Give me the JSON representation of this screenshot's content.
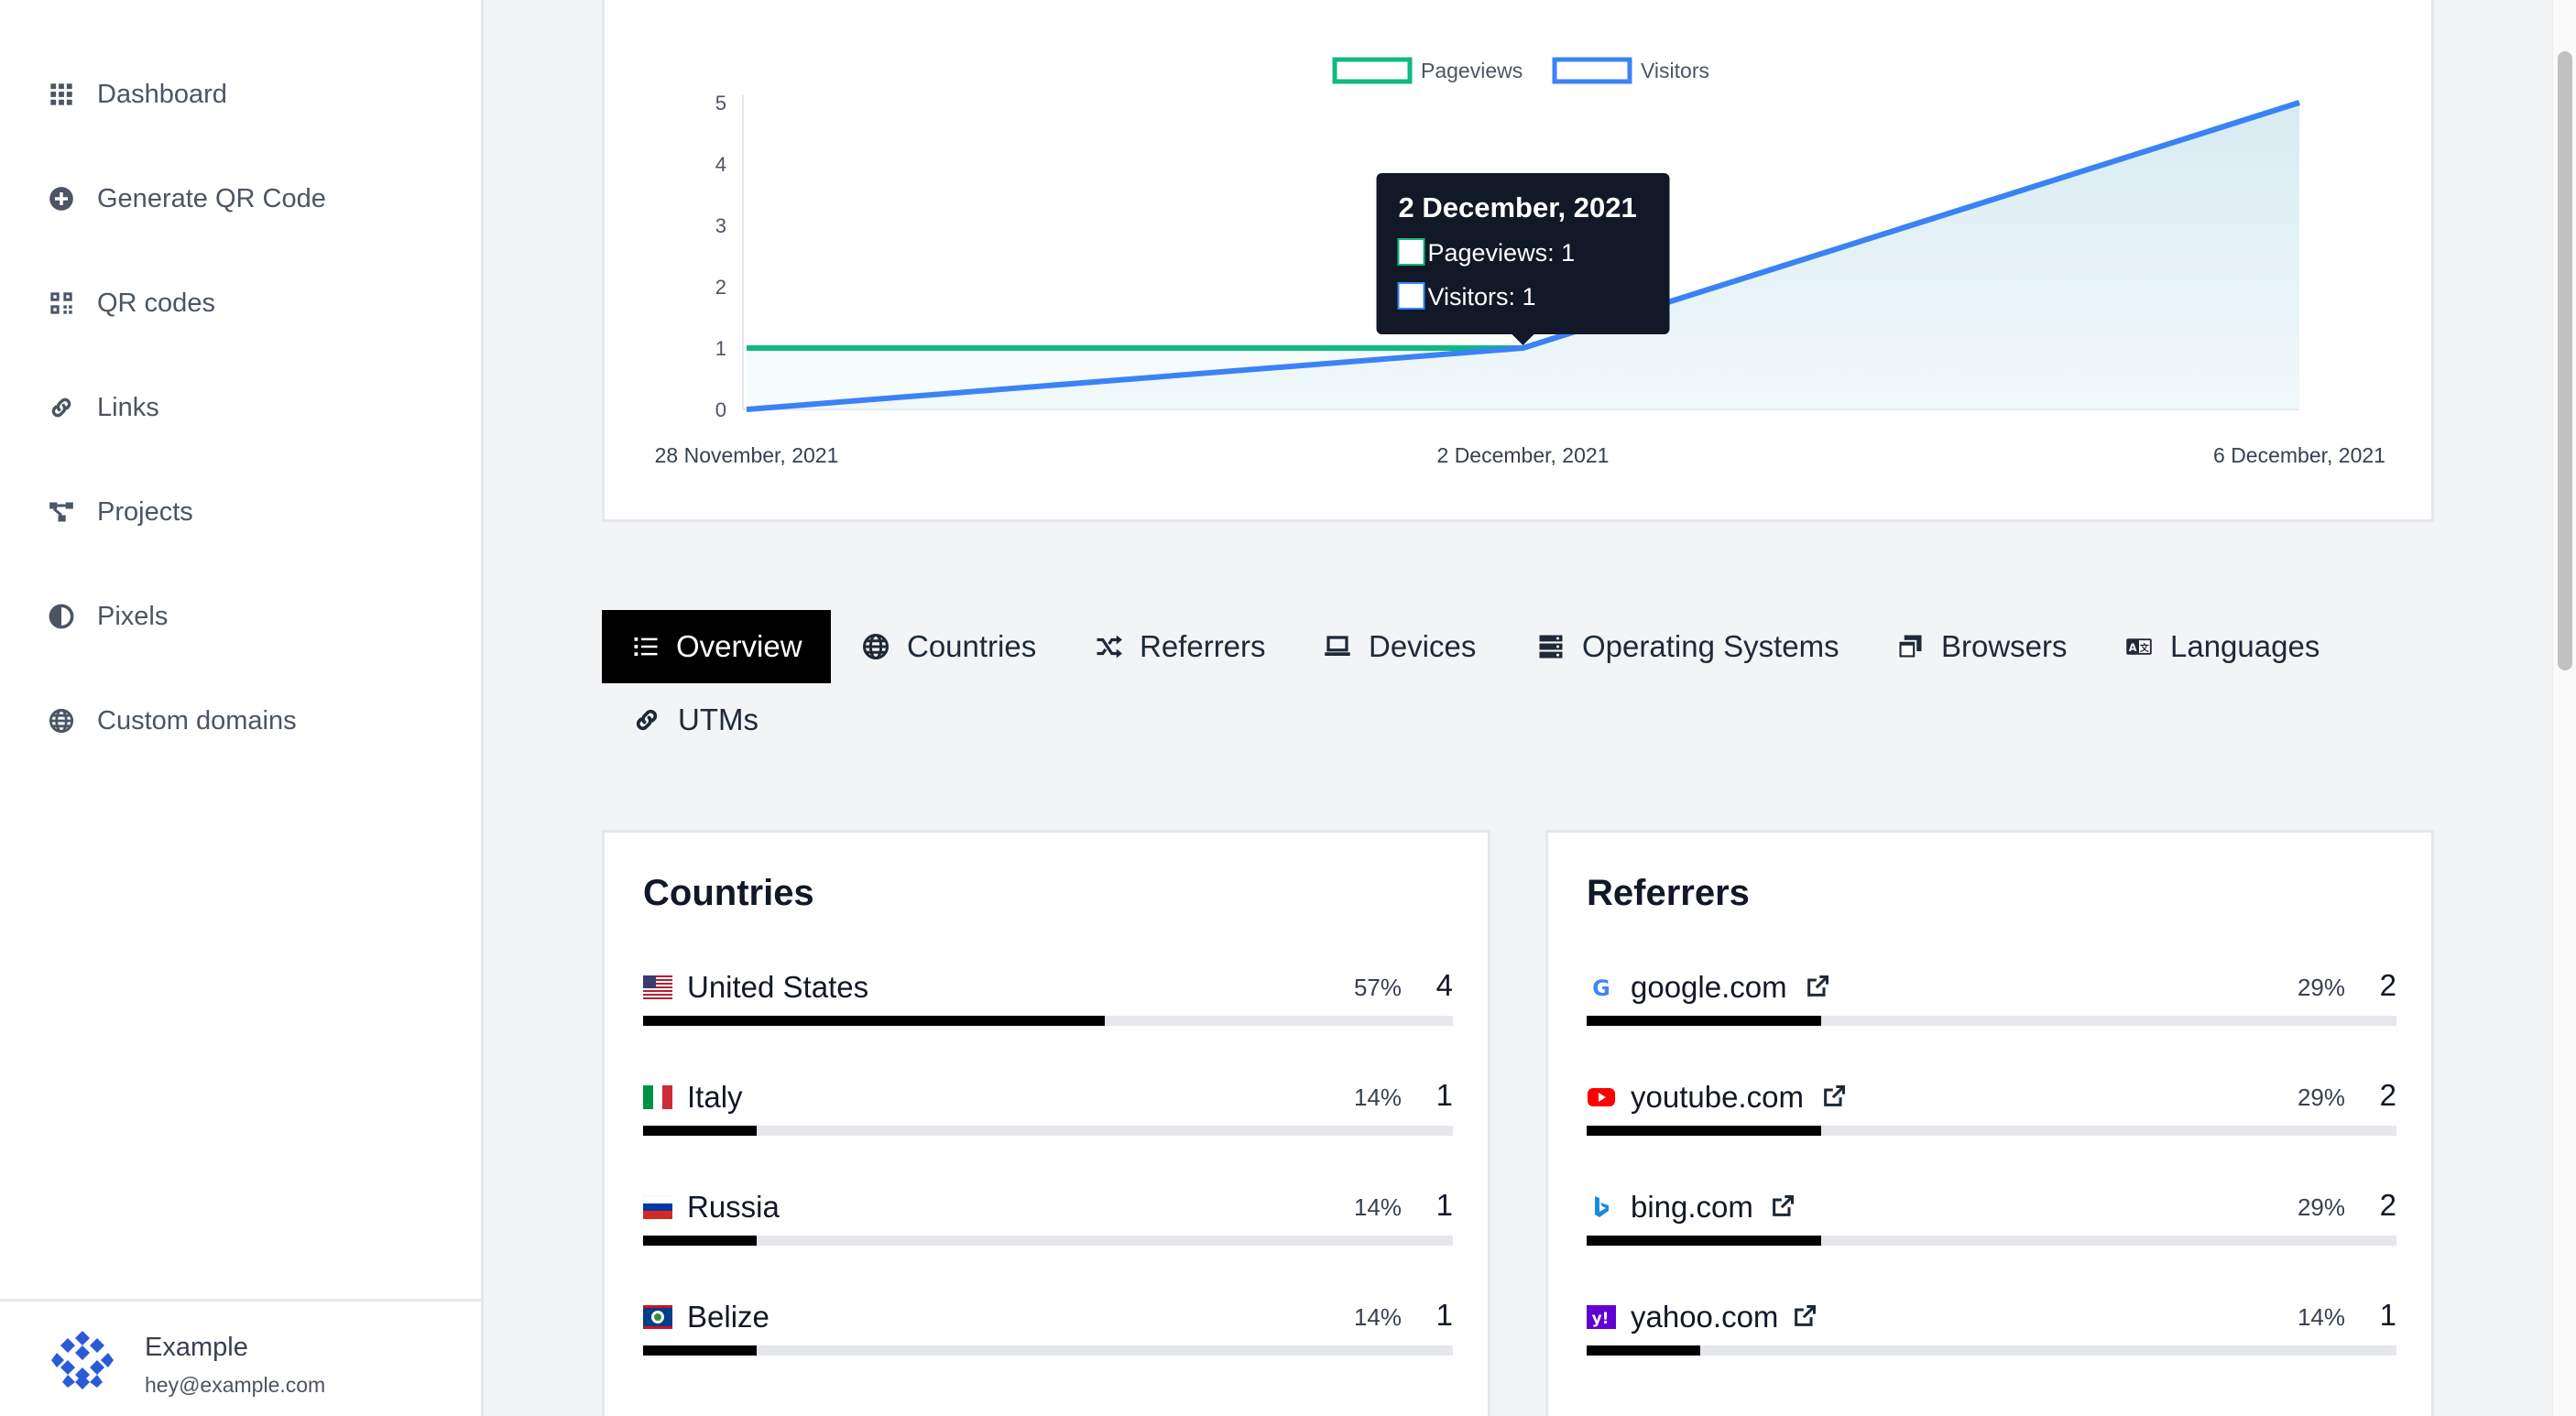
{
  "sidebar": {
    "items": [
      {
        "label": "Dashboard",
        "icon": "grid-icon"
      },
      {
        "label": "Generate QR Code",
        "icon": "plus-circle-icon"
      },
      {
        "label": "QR codes",
        "icon": "qrcode-icon"
      },
      {
        "label": "Links",
        "icon": "link-icon"
      },
      {
        "label": "Projects",
        "icon": "project-diagram-icon"
      },
      {
        "label": "Pixels",
        "icon": "adjust-icon"
      },
      {
        "label": "Custom domains",
        "icon": "globe-icon"
      }
    ],
    "user": {
      "name": "Example",
      "email": "hey@example.com"
    }
  },
  "chart_data": {
    "type": "line",
    "x": [
      "28 November, 2021",
      "2 December, 2021",
      "6 December, 2021"
    ],
    "series": [
      {
        "name": "Pageviews",
        "values": [
          1,
          1,
          5
        ],
        "color": "#10b981"
      },
      {
        "name": "Visitors",
        "values": [
          0,
          1,
          5
        ],
        "color": "#3b82f6"
      }
    ],
    "yticks": [
      "0",
      "1",
      "2",
      "3",
      "4",
      "5"
    ],
    "ylim": [
      0,
      5
    ],
    "legend_position": "top",
    "tooltip": {
      "title": "2 December, 2021",
      "lines": [
        "Pageviews: 1",
        "Visitors: 1"
      ]
    }
  },
  "tabs": [
    {
      "label": "Overview",
      "icon": "list-icon",
      "active": true
    },
    {
      "label": "Countries",
      "icon": "globe-icon"
    },
    {
      "label": "Referrers",
      "icon": "random-icon"
    },
    {
      "label": "Devices",
      "icon": "laptop-icon"
    },
    {
      "label": "Operating Systems",
      "icon": "server-icon"
    },
    {
      "label": "Browsers",
      "icon": "window-restore-icon"
    },
    {
      "label": "Languages",
      "icon": "language-icon"
    },
    {
      "label": "UTMs",
      "icon": "link-icon"
    }
  ],
  "countries": {
    "title": "Countries",
    "rows": [
      {
        "label": "United States",
        "pct": "57%",
        "count": "4",
        "fraction": 0.57,
        "icon": "us-flag-icon"
      },
      {
        "label": "Italy",
        "pct": "14%",
        "count": "1",
        "fraction": 0.14,
        "icon": "it-flag-icon"
      },
      {
        "label": "Russia",
        "pct": "14%",
        "count": "1",
        "fraction": 0.14,
        "icon": "ru-flag-icon"
      },
      {
        "label": "Belize",
        "pct": "14%",
        "count": "1",
        "fraction": 0.14,
        "icon": "bz-flag-icon"
      }
    ]
  },
  "referrers": {
    "title": "Referrers",
    "rows": [
      {
        "label": "google.com",
        "pct": "29%",
        "count": "2",
        "fraction": 0.29,
        "icon": "google-icon"
      },
      {
        "label": "youtube.com",
        "pct": "29%",
        "count": "2",
        "fraction": 0.29,
        "icon": "youtube-icon"
      },
      {
        "label": "bing.com",
        "pct": "29%",
        "count": "2",
        "fraction": 0.29,
        "icon": "bing-icon"
      },
      {
        "label": "yahoo.com",
        "pct": "14%",
        "count": "1",
        "fraction": 0.14,
        "icon": "yahoo-icon"
      }
    ]
  }
}
